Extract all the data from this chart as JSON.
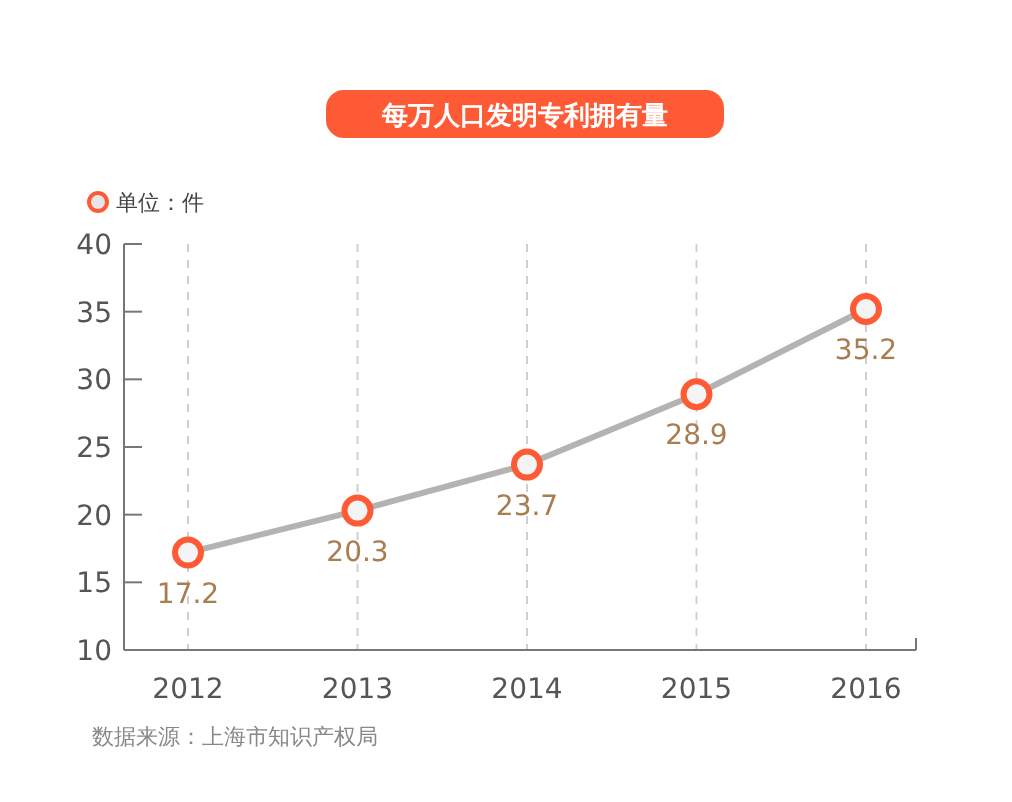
{
  "chart_data": {
    "type": "line",
    "title": "每万人口发明专利拥有量",
    "categories": [
      "2012",
      "2013",
      "2014",
      "2015",
      "2016"
    ],
    "series": [
      {
        "name": "单位：件",
        "color": "#b3b3b3",
        "values": [
          17.2,
          20.3,
          23.7,
          28.9,
          35.2
        ]
      }
    ],
    "ylim": [
      10,
      40
    ],
    "yticks": [
      10,
      15,
      20,
      25,
      30,
      35,
      40
    ],
    "grid": "x",
    "legend": "top left",
    "marker": "circle",
    "line_style": "solid",
    "data_labels": true,
    "annotations": [
      "数据来源：上海市知识产权局"
    ]
  }
}
